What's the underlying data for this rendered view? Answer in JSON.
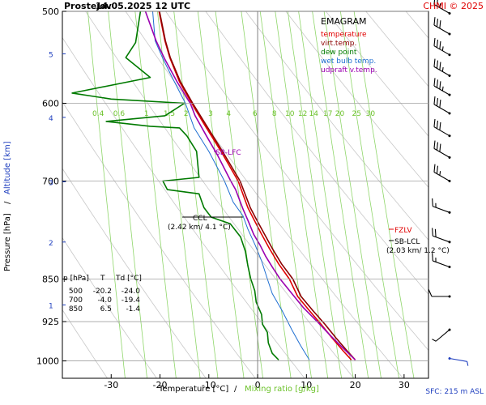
{
  "header": {
    "station": "Prostejov",
    "datetime": "14.05.2025 12 UTC",
    "copyright": "CHMI © 2025"
  },
  "legend": {
    "title": "EMAGRAM",
    "items": [
      {
        "label": "temperature",
        "color": "#e00000"
      },
      {
        "label": "virt.temp.",
        "color": "#8b0000"
      },
      {
        "label": "dew point",
        "color": "#007a00"
      },
      {
        "label": "wet bulb temp.",
        "color": "#1f6fd1"
      },
      {
        "label": "udpraft v.temp.",
        "color": "#9b00b0"
      }
    ]
  },
  "axes": {
    "xlabel_temp": "Temperature [°C]",
    "xlabel_sep": "/",
    "xlabel_mix": "Mixing ratio [g/kg]",
    "ylabel_pressure": "Pressure [hPa]",
    "ylabel_sep": "/",
    "ylabel_altitude": "Altitude [km]",
    "surface": "SFC: 215 m ASL"
  },
  "table": {
    "headers": [
      "p [hPa]",
      "T",
      "Td [°C]"
    ],
    "rows": [
      [
        "500",
        "-20.2",
        "-24.0"
      ],
      [
        "700",
        "-4.0",
        "-19.4"
      ],
      [
        "850",
        "6.5",
        "-1.4"
      ]
    ]
  },
  "annotations": {
    "sb_lfc": "SB-LFC",
    "ccl": "CCL",
    "ccl_value": "(2.42 km/ 4.1 °C)",
    "fzlv": "FZLV",
    "sb_lcl": "SB-LCL",
    "sb_lcl_value": "(2.03 km/ 1.2 °C)"
  },
  "chart_data": {
    "type": "line",
    "xlim": [
      -40,
      35
    ],
    "ylim_pressure": [
      1035,
      500
    ],
    "pressure_ticks": [
      500,
      600,
      700,
      850,
      925,
      1000
    ],
    "pressure_tick_labels": [
      "500",
      "600",
      "700",
      "850",
      "925",
      "1000"
    ],
    "temperature_ticks": [
      -30,
      -20,
      -10,
      0,
      10,
      20,
      30
    ],
    "temperature_tick_labels": [
      "-30",
      "-20",
      "-10",
      "0",
      "10",
      "20",
      "30"
    ],
    "altitude_ticks": [
      {
        "label": "1",
        "p": 895
      },
      {
        "label": "2",
        "p": 790
      },
      {
        "label": "3",
        "p": 701
      },
      {
        "label": "4",
        "p": 617
      },
      {
        "label": "5",
        "p": 544
      }
    ],
    "mixing_ratio_labels": [
      "0.4",
      "0.6",
      "1",
      "1.5",
      "2",
      "3",
      "4",
      "6",
      "8",
      "10",
      "12",
      "14",
      "17",
      "20",
      "25",
      "30"
    ],
    "series": [
      {
        "name": "temperature",
        "key": "temperature",
        "color": "#e00000",
        "points": [
          [
            19.2,
            998
          ],
          [
            17.5,
            980
          ],
          [
            15.2,
            955
          ],
          [
            13.0,
            930
          ],
          [
            10.6,
            905
          ],
          [
            8.2,
            880
          ],
          [
            6.5,
            850
          ],
          [
            4.3,
            825
          ],
          [
            2.4,
            800
          ],
          [
            0.6,
            775
          ],
          [
            -1.0,
            752
          ],
          [
            -2.0,
            738
          ],
          [
            -4.0,
            700
          ],
          [
            -7.5,
            660
          ],
          [
            -11.0,
            625
          ],
          [
            -13.5,
            600
          ],
          [
            -16.0,
            575
          ],
          [
            -18.0,
            548
          ],
          [
            -19.0,
            530
          ],
          [
            -20.2,
            500
          ]
        ]
      },
      {
        "name": "virt.temp.",
        "key": "virt_temp",
        "color": "#8b0000",
        "points": [
          [
            20.0,
            998
          ],
          [
            18.3,
            980
          ],
          [
            16.0,
            955
          ],
          [
            13.8,
            930
          ],
          [
            11.3,
            905
          ],
          [
            8.9,
            880
          ],
          [
            7.2,
            850
          ],
          [
            4.9,
            825
          ],
          [
            3.0,
            800
          ],
          [
            1.2,
            775
          ],
          [
            -0.5,
            752
          ],
          [
            -1.5,
            738
          ],
          [
            -3.6,
            700
          ],
          [
            -7.2,
            660
          ],
          [
            -10.7,
            625
          ],
          [
            -13.3,
            600
          ],
          [
            -15.8,
            575
          ],
          [
            -17.9,
            548
          ],
          [
            -18.9,
            530
          ],
          [
            -20.1,
            500
          ]
        ]
      },
      {
        "name": "dew point",
        "key": "dew_point",
        "color": "#007a00",
        "points": [
          [
            4.3,
            998
          ],
          [
            3.0,
            985
          ],
          [
            2.2,
            965
          ],
          [
            2.0,
            945
          ],
          [
            1.0,
            930
          ],
          [
            0.8,
            912
          ],
          [
            -0.3,
            890
          ],
          [
            -0.6,
            870
          ],
          [
            -1.4,
            850
          ],
          [
            -2.0,
            828
          ],
          [
            -2.5,
            805
          ],
          [
            -3.5,
            782
          ],
          [
            -5.6,
            762
          ],
          [
            -9.5,
            752
          ],
          [
            -11.0,
            738
          ],
          [
            -12.0,
            718
          ],
          [
            -18.5,
            712
          ],
          [
            -19.4,
            700
          ],
          [
            -12.0,
            695
          ],
          [
            -12.5,
            660
          ],
          [
            -14.5,
            640
          ],
          [
            -16.0,
            630
          ],
          [
            -22.0,
            628
          ],
          [
            -31.0,
            622
          ],
          [
            -19.0,
            615
          ],
          [
            -15.0,
            600
          ],
          [
            -30.0,
            595
          ],
          [
            -38.0,
            588
          ],
          [
            -22.0,
            570
          ],
          [
            -27.0,
            548
          ],
          [
            -25.0,
            532
          ],
          [
            -24.0,
            500
          ]
        ]
      },
      {
        "name": "wet bulb temp.",
        "key": "wet_bulb",
        "color": "#1f6fd1",
        "points": [
          [
            10.6,
            998
          ],
          [
            8.8,
            970
          ],
          [
            7.0,
            940
          ],
          [
            5.0,
            905
          ],
          [
            3.0,
            875
          ],
          [
            2.0,
            850
          ],
          [
            0.8,
            820
          ],
          [
            -0.5,
            795
          ],
          [
            -2.0,
            770
          ],
          [
            -3.0,
            750
          ],
          [
            -5.0,
            730
          ],
          [
            -6.8,
            700
          ],
          [
            -10.0,
            660
          ],
          [
            -13.0,
            630
          ],
          [
            -14.8,
            600
          ],
          [
            -17.5,
            570
          ],
          [
            -19.5,
            548
          ],
          [
            -21.0,
            530
          ],
          [
            -21.5,
            500
          ]
        ]
      },
      {
        "name": "udpraft v.temp.",
        "key": "updraft",
        "color": "#9b00b0",
        "points": [
          [
            20.0,
            998
          ],
          [
            17.5,
            975
          ],
          [
            14.8,
            950
          ],
          [
            12.2,
            925
          ],
          [
            9.4,
            900
          ],
          [
            7.0,
            875
          ],
          [
            4.6,
            850
          ],
          [
            3.0,
            830
          ],
          [
            1.6,
            812
          ],
          [
            0.5,
            795
          ],
          [
            -0.8,
            778
          ],
          [
            -1.8,
            760
          ],
          [
            -3.0,
            740
          ],
          [
            -4.5,
            712
          ],
          [
            -5.5,
            700
          ],
          [
            -8.2,
            665
          ],
          [
            -10.5,
            640
          ],
          [
            -12.8,
            615
          ],
          [
            -13.8,
            600
          ],
          [
            -16.5,
            575
          ],
          [
            -19.0,
            550
          ],
          [
            -20.8,
            530
          ],
          [
            -23.0,
            500
          ]
        ]
      }
    ],
    "wind_barbs": [
      {
        "p": 995,
        "dir": 100,
        "speed": 5
      },
      {
        "p": 940,
        "dir": 230,
        "speed": 5
      },
      {
        "p": 880,
        "dir": 270,
        "speed": 10
      },
      {
        "p": 830,
        "dir": 290,
        "speed": 15
      },
      {
        "p": 790,
        "dir": 290,
        "speed": 20
      },
      {
        "p": 745,
        "dir": 290,
        "speed": 15
      },
      {
        "p": 700,
        "dir": 300,
        "speed": 25
      },
      {
        "p": 668,
        "dir": 300,
        "speed": 30
      },
      {
        "p": 640,
        "dir": 300,
        "speed": 30
      },
      {
        "p": 612,
        "dir": 300,
        "speed": 30
      },
      {
        "p": 590,
        "dir": 300,
        "speed": 35
      },
      {
        "p": 568,
        "dir": 300,
        "speed": 35
      },
      {
        "p": 545,
        "dir": 300,
        "speed": 35
      },
      {
        "p": 523,
        "dir": 300,
        "speed": 30
      },
      {
        "p": 502,
        "dir": 300,
        "speed": 25
      }
    ]
  }
}
